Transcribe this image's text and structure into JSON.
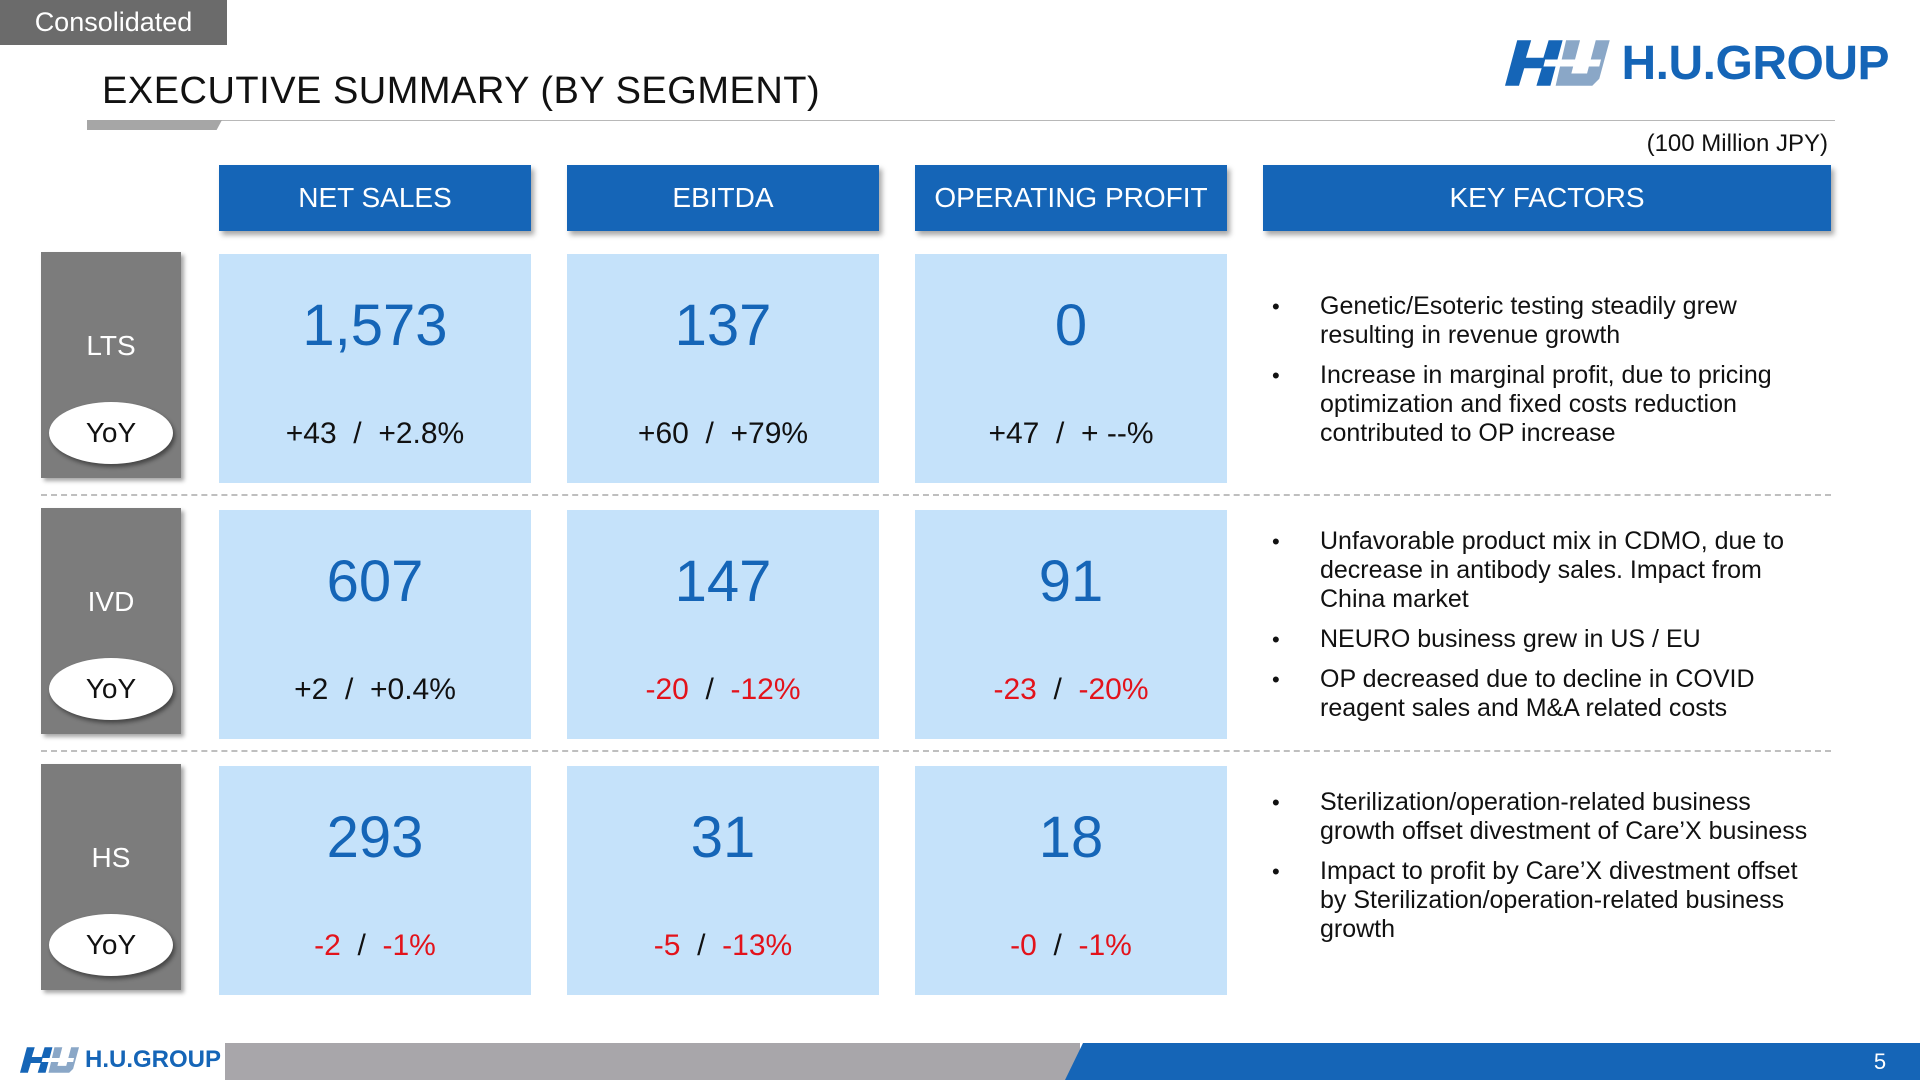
{
  "tag": "Consolidated",
  "title": "EXECUTIVE SUMMARY (BY SEGMENT)",
  "logo_text": "H.U.GROUP",
  "unit": "(100 Million JPY)",
  "headers": [
    "NET SALES",
    "EBITDA",
    "OPERATING PROFIT",
    "KEY FACTORS"
  ],
  "yoy_label": "YoY",
  "colors": {
    "accent_blue": "#1565b7",
    "cell_bg": "#c5e2fa",
    "negative": "#e3131b",
    "side_gray": "#7c7c7c"
  },
  "rows": [
    {
      "segment": "LTS",
      "net_sales": {
        "value": "1,573",
        "yoy_abs": "+43",
        "yoy_pct": "+2.8%",
        "negative": false
      },
      "ebitda": {
        "value": "137",
        "yoy_abs": "+60",
        "yoy_pct": "+79%",
        "negative": false
      },
      "op": {
        "value": "0",
        "yoy_abs": "+47",
        "yoy_pct": "+ --%",
        "negative": false
      },
      "factors": [
        "Genetic/Esoteric testing steadily grew resulting in revenue growth",
        "Increase in marginal profit, due to pricing optimization and fixed costs reduction contributed to OP increase"
      ]
    },
    {
      "segment": "IVD",
      "net_sales": {
        "value": "607",
        "yoy_abs": "+2",
        "yoy_pct": "+0.4%",
        "negative": false
      },
      "ebitda": {
        "value": "147",
        "yoy_abs": "-20",
        "yoy_pct": "-12%",
        "negative": true
      },
      "op": {
        "value": "91",
        "yoy_abs": "-23",
        "yoy_pct": "-20%",
        "negative": true
      },
      "factors": [
        "Unfavorable product mix in CDMO, due to decrease in antibody sales. Impact from China market",
        "NEURO business grew in US / EU",
        "OP decreased due to decline in COVID reagent sales and M&A related costs"
      ]
    },
    {
      "segment": "HS",
      "net_sales": {
        "value": "293",
        "yoy_abs": "-2",
        "yoy_pct": "-1%",
        "negative": true
      },
      "ebitda": {
        "value": "31",
        "yoy_abs": "-5",
        "yoy_pct": "-13%",
        "negative": true
      },
      "op": {
        "value": "18",
        "yoy_abs": "-0",
        "yoy_pct": "-1%",
        "negative": true
      },
      "factors": [
        "Sterilization/operation-related business growth offset divestment of Care’X business",
        "Impact to profit by Care’X divestment offset by Sterilization/operation-related business growth"
      ]
    }
  ],
  "footer": {
    "logo_text": "H.U.GROUP",
    "page_number": "5"
  }
}
